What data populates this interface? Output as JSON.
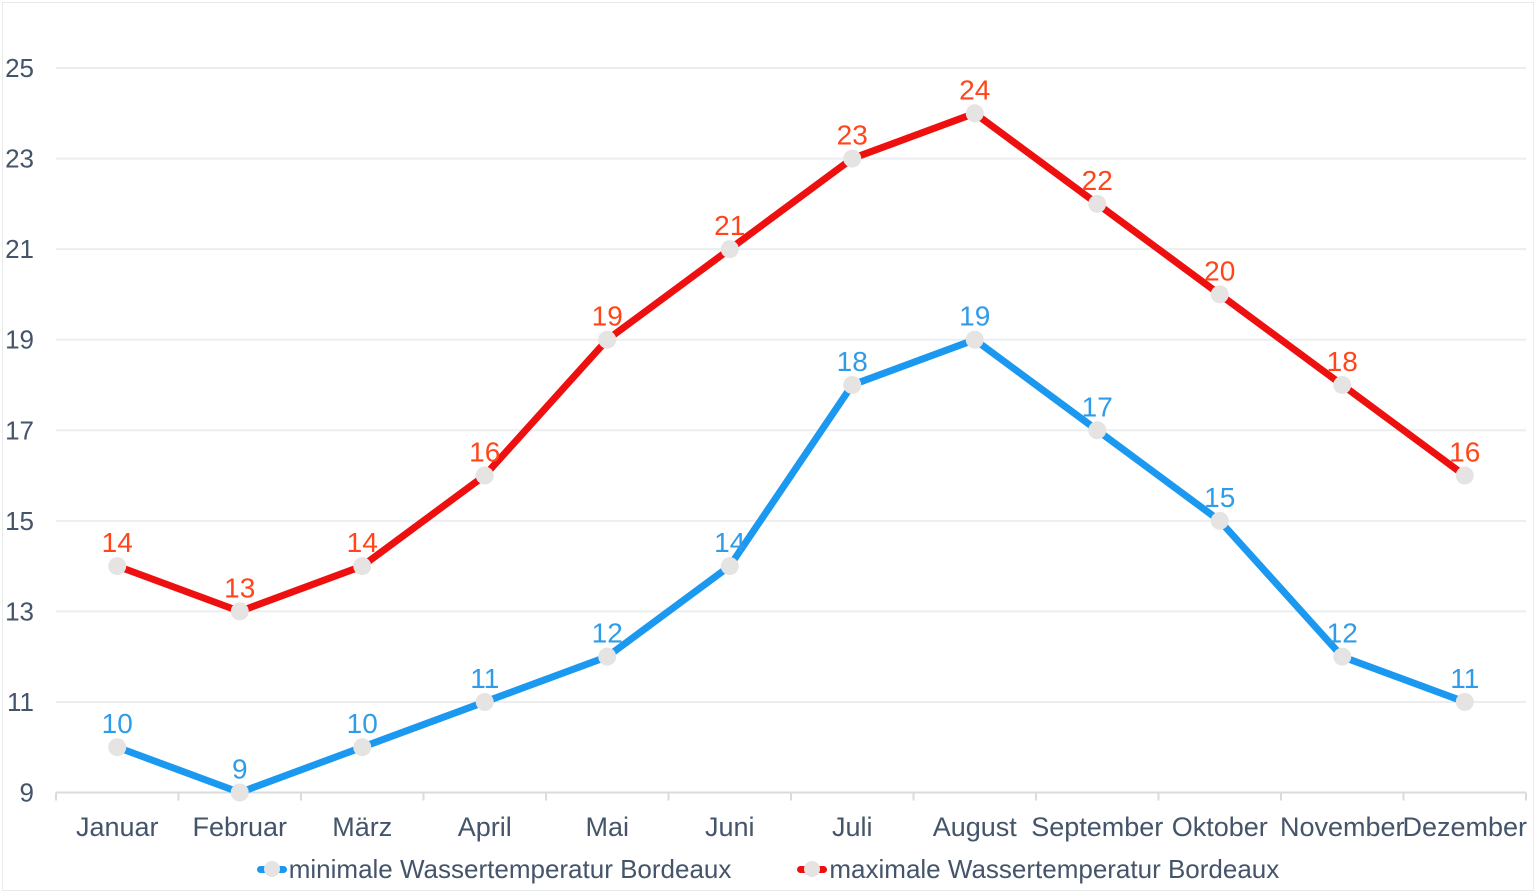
{
  "chart_data": {
    "type": "line",
    "categories": [
      "Januar",
      "Februar",
      "März",
      "April",
      "Mai",
      "Juni",
      "Juli",
      "August",
      "September",
      "Oktober",
      "November",
      "Dezember"
    ],
    "y_ticks": [
      9,
      11,
      13,
      15,
      17,
      19,
      21,
      23,
      25
    ],
    "ylim": [
      9,
      25
    ],
    "grid": true,
    "legend_position": "bottom",
    "series": [
      {
        "name": "minimale Wassertemperatur Bordeaux",
        "values": [
          10,
          9,
          10,
          11,
          12,
          14,
          18,
          19,
          17,
          15,
          12,
          11
        ],
        "line_color": "#1B98EF",
        "label_color": "#2F9CE9"
      },
      {
        "name": "maximale Wassertemperatur Bordeaux",
        "values": [
          14,
          13,
          14,
          16,
          19,
          21,
          23,
          24,
          22,
          20,
          18,
          16
        ],
        "line_color": "#EE0F0F",
        "label_color": "#FF4519"
      }
    ],
    "colors": {
      "axis_text": "#44546A",
      "gridline": "#ECEDEF",
      "axis_line": "#D9DBDE",
      "marker": "#E5E4E3",
      "background": "#FFFFFF",
      "border": "#E9EAEC"
    }
  }
}
